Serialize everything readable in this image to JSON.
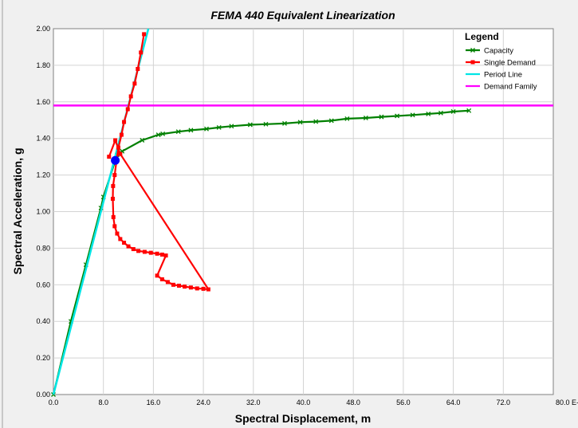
{
  "chart_data": {
    "type": "line",
    "title": "FEMA 440 Equivalent Linearization",
    "xlabel": "Spectral Displacement, m",
    "ylabel": "Spectral Acceleration, g",
    "x_scale_note": "E-3",
    "xlim": [
      0,
      80
    ],
    "ylim": [
      0,
      2.0
    ],
    "x_ticks": [
      "0.0",
      "8.0",
      "16.0",
      "24.0",
      "32.0",
      "40.0",
      "48.0",
      "56.0",
      "64.0",
      "72.0",
      "80.0 E-3"
    ],
    "y_ticks": [
      "0.00",
      "0.20",
      "0.40",
      "0.60",
      "0.80",
      "1.00",
      "1.20",
      "1.40",
      "1.60",
      "1.80",
      "2.00"
    ],
    "grid": true,
    "legend": {
      "title": "Legend",
      "position": "top-right",
      "entries": [
        {
          "name": "Capacity",
          "color": "#008000",
          "marker": "x"
        },
        {
          "name": "Single Demand",
          "color": "#ff0000",
          "marker": "square"
        },
        {
          "name": "Period Line",
          "color": "#00e5e5",
          "marker": "none"
        },
        {
          "name": "Demand Family",
          "color": "#ff00ff",
          "marker": "none"
        }
      ]
    },
    "series": [
      {
        "name": "Capacity",
        "color": "#008000",
        "marker": "x",
        "x": [
          0,
          2.8,
          5.2,
          7.6,
          8.0,
          10.2,
          11.0,
          14.2,
          16.8,
          17.5,
          20.0,
          22.0,
          24.5,
          26.5,
          28.5,
          31.5,
          34.0,
          37.0,
          39.5,
          42.0,
          44.5,
          47.0,
          50.0,
          52.5,
          55.0,
          57.5,
          60.0,
          62.0,
          64.0,
          66.5
        ],
        "y": [
          0,
          0.4,
          0.71,
          1.02,
          1.08,
          1.31,
          1.33,
          1.39,
          1.42,
          1.425,
          1.437,
          1.445,
          1.452,
          1.46,
          1.467,
          1.475,
          1.478,
          1.482,
          1.489,
          1.492,
          1.497,
          1.508,
          1.512,
          1.518,
          1.523,
          1.528,
          1.534,
          1.539,
          1.547,
          1.552
        ]
      },
      {
        "name": "Single Demand",
        "color": "#ff0000",
        "marker": "square",
        "x": [
          14.5,
          14.0,
          13.5,
          13.0,
          12.4,
          11.9,
          11.3,
          10.9,
          10.4,
          10.1,
          9.8,
          9.55,
          9.5,
          9.6,
          9.8,
          10.2,
          10.7,
          11.3,
          12.0,
          12.8,
          13.6,
          14.6,
          15.6,
          16.6,
          17.4,
          18.0,
          16.6,
          17.4,
          18.3,
          19.2,
          20.1,
          21.0,
          22.0,
          23.0,
          24.0,
          24.8,
          10.7,
          9.9,
          8.9
        ],
        "y": [
          1.97,
          1.87,
          1.78,
          1.7,
          1.63,
          1.56,
          1.49,
          1.42,
          1.35,
          1.28,
          1.2,
          1.14,
          1.07,
          0.97,
          0.92,
          0.88,
          0.85,
          0.83,
          0.81,
          0.795,
          0.785,
          0.78,
          0.775,
          0.77,
          0.765,
          0.76,
          0.65,
          0.63,
          0.615,
          0.6,
          0.595,
          0.59,
          0.585,
          0.58,
          0.578,
          0.575,
          1.315,
          1.39,
          1.3
        ],
        "path_order": "top-down then back"
      },
      {
        "name": "Period Line",
        "color": "#00e5e5",
        "marker": "none",
        "x": [
          0,
          15.2
        ],
        "y": [
          0,
          2.0
        ]
      },
      {
        "name": "Demand Family",
        "color": "#ff00ff",
        "marker": "none",
        "x": [
          0,
          80
        ],
        "y": [
          1.58,
          1.58
        ]
      }
    ],
    "performance_point": {
      "x": 9.9,
      "y": 1.28,
      "color": "#0000ff"
    }
  }
}
